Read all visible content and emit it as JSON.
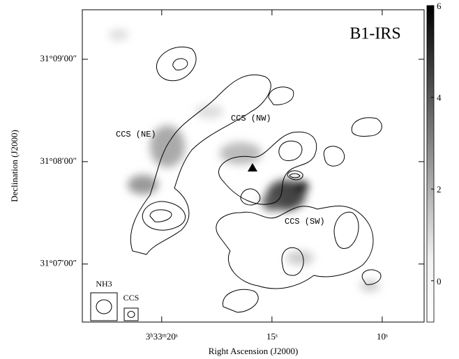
{
  "chart_data": {
    "type": "contour",
    "title": "B1-IRS",
    "xlabel": "Right Ascension (J2000)",
    "ylabel": "Declination (J2000)",
    "xlim": [
      12803.6,
      12788.1
    ],
    "xticks": [
      {
        "value": 12800,
        "label": "3ʰ33ᵐ20ˢ"
      },
      {
        "value": 12795,
        "label": "15ˢ"
      },
      {
        "value": 12790,
        "label": "10ˢ"
      }
    ],
    "ylim": [
      111986,
      112169
    ],
    "yticks": [
      {
        "value": 112140,
        "label": "31°09′00″"
      },
      {
        "value": 112080,
        "label": "31°08′00″"
      },
      {
        "value": 112020,
        "label": "31°07′00″"
      }
    ],
    "colorbar": {
      "lim": [
        -0.9,
        6
      ],
      "ticks": [
        0,
        2,
        4,
        6
      ]
    },
    "annotations": [
      "CCS (NE)",
      "CCS (NW)",
      "CCS (SW)"
    ],
    "beams": [
      "NH3",
      "CCS"
    ]
  }
}
